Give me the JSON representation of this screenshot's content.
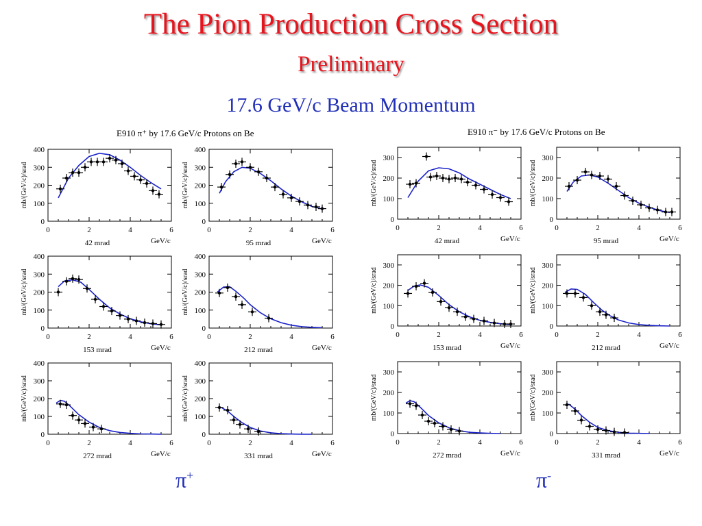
{
  "slide": {
    "title": "The Pion Production Cross Section",
    "subtitle": "Preliminary",
    "beam_label": "17.6 GeV/c Beam Momentum"
  },
  "panels": [
    {
      "title": "E910 π⁺ by 17.6 GeV/c Protons on Be",
      "pion_symbol": "π",
      "pion_charge": "+"
    },
    {
      "title": "E910 π⁻ by 17.6 GeV/c Protons on Be",
      "pion_symbol": "π",
      "pion_charge": "-"
    }
  ],
  "colors": {
    "title": "#e8141d",
    "beam": "#2230b8",
    "curve": "#1a22c8",
    "points": "#000000"
  },
  "chart_data": [
    {
      "type": "scatter",
      "group": "pi+",
      "title": "42 mrad",
      "xlabel": "GeV/c",
      "ylabel": "mb/(GeV/c)/srad",
      "xlim": [
        0,
        6
      ],
      "ylim": [
        0,
        400
      ],
      "xticks": [
        0,
        2,
        4,
        6
      ],
      "yticks": [
        0,
        100,
        200,
        300,
        400
      ],
      "points": [
        [
          0.6,
          180
        ],
        [
          0.9,
          240
        ],
        [
          1.2,
          270
        ],
        [
          1.5,
          270
        ],
        [
          1.8,
          300
        ],
        [
          2.1,
          330
        ],
        [
          2.4,
          330
        ],
        [
          2.7,
          330
        ],
        [
          3.0,
          350
        ],
        [
          3.3,
          340
        ],
        [
          3.6,
          320
        ],
        [
          3.9,
          280
        ],
        [
          4.2,
          250
        ],
        [
          4.5,
          230
        ],
        [
          4.8,
          210
        ],
        [
          5.1,
          170
        ],
        [
          5.4,
          150
        ]
      ],
      "curve": [
        [
          0.5,
          130
        ],
        [
          1,
          240
        ],
        [
          1.5,
          310
        ],
        [
          2,
          360
        ],
        [
          2.5,
          378
        ],
        [
          3,
          370
        ],
        [
          3.5,
          340
        ],
        [
          4,
          300
        ],
        [
          4.5,
          255
        ],
        [
          5,
          215
        ],
        [
          5.5,
          180
        ]
      ]
    },
    {
      "type": "scatter",
      "group": "pi+",
      "title": "95 mrad",
      "xlabel": "GeV/c",
      "ylabel": "mb/(GeV/c)/srad",
      "xlim": [
        0,
        6
      ],
      "ylim": [
        0,
        400
      ],
      "xticks": [
        0,
        2,
        4,
        6
      ],
      "yticks": [
        0,
        100,
        200,
        300,
        400
      ],
      "points": [
        [
          0.6,
          190
        ],
        [
          1.0,
          260
        ],
        [
          1.3,
          320
        ],
        [
          1.6,
          330
        ],
        [
          2.0,
          300
        ],
        [
          2.4,
          275
        ],
        [
          2.8,
          240
        ],
        [
          3.2,
          190
        ],
        [
          3.6,
          150
        ],
        [
          4.0,
          130
        ],
        [
          4.4,
          110
        ],
        [
          4.8,
          90
        ],
        [
          5.2,
          80
        ],
        [
          5.5,
          70
        ]
      ],
      "curve": [
        [
          0.5,
          155
        ],
        [
          0.8,
          220
        ],
        [
          1.2,
          275
        ],
        [
          1.6,
          300
        ],
        [
          2,
          295
        ],
        [
          2.5,
          265
        ],
        [
          3,
          225
        ],
        [
          3.5,
          180
        ],
        [
          4,
          140
        ],
        [
          4.5,
          108
        ],
        [
          5,
          82
        ],
        [
          5.5,
          68
        ]
      ]
    },
    {
      "type": "scatter",
      "group": "pi+",
      "title": "153 mrad",
      "xlabel": "GeV/c",
      "ylabel": "mb/(GeV/c)/srad",
      "xlim": [
        0,
        6
      ],
      "ylim": [
        0,
        400
      ],
      "xticks": [
        0,
        2,
        4,
        6
      ],
      "yticks": [
        0,
        100,
        200,
        300,
        400
      ],
      "points": [
        [
          0.5,
          200
        ],
        [
          0.9,
          260
        ],
        [
          1.2,
          275
        ],
        [
          1.5,
          270
        ],
        [
          1.9,
          220
        ],
        [
          2.3,
          160
        ],
        [
          2.7,
          120
        ],
        [
          3.1,
          95
        ],
        [
          3.5,
          70
        ],
        [
          3.9,
          50
        ],
        [
          4.3,
          40
        ],
        [
          4.7,
          30
        ],
        [
          5.1,
          25
        ],
        [
          5.5,
          20
        ]
      ],
      "curve": [
        [
          0.5,
          230
        ],
        [
          0.8,
          262
        ],
        [
          1.2,
          268
        ],
        [
          1.6,
          255
        ],
        [
          2,
          215
        ],
        [
          2.5,
          160
        ],
        [
          3,
          112
        ],
        [
          3.5,
          78
        ],
        [
          4,
          52
        ],
        [
          4.5,
          35
        ],
        [
          5,
          24
        ],
        [
          5.5,
          18
        ]
      ]
    },
    {
      "type": "scatter",
      "group": "pi+",
      "title": "212 mrad",
      "xlabel": "GeV/c",
      "ylabel": "mb/(GeV/c)/srad",
      "xlim": [
        0,
        6
      ],
      "ylim": [
        0,
        400
      ],
      "xticks": [
        0,
        2,
        4,
        6
      ],
      "yticks": [
        0,
        100,
        200,
        300,
        400
      ],
      "points": [
        [
          0.5,
          195
        ],
        [
          0.9,
          225
        ],
        [
          1.3,
          175
        ],
        [
          1.6,
          130
        ],
        [
          2.1,
          90
        ],
        [
          2.9,
          55
        ]
      ],
      "curve": [
        [
          0.4,
          200
        ],
        [
          0.7,
          228
        ],
        [
          1.0,
          230
        ],
        [
          1.3,
          205
        ],
        [
          1.7,
          165
        ],
        [
          2,
          130
        ],
        [
          2.5,
          85
        ],
        [
          3,
          52
        ],
        [
          3.5,
          30
        ],
        [
          4,
          16
        ],
        [
          4.5,
          8
        ],
        [
          5,
          4
        ],
        [
          5.5,
          2
        ]
      ]
    },
    {
      "type": "scatter",
      "group": "pi+",
      "title": "272 mrad",
      "xlabel": "GeV/c",
      "ylabel": "mb/(GeV/c)/srad",
      "xlim": [
        0,
        6
      ],
      "ylim": [
        0,
        400
      ],
      "xticks": [
        0,
        2,
        4,
        6
      ],
      "yticks": [
        0,
        100,
        200,
        300,
        400
      ],
      "points": [
        [
          0.6,
          170
        ],
        [
          0.9,
          165
        ],
        [
          1.2,
          105
        ],
        [
          1.5,
          80
        ],
        [
          1.8,
          60
        ],
        [
          2.2,
          40
        ],
        [
          2.6,
          30
        ]
      ],
      "curve": [
        [
          0.4,
          175
        ],
        [
          0.6,
          190
        ],
        [
          0.8,
          185
        ],
        [
          1.1,
          155
        ],
        [
          1.5,
          110
        ],
        [
          2,
          68
        ],
        [
          2.5,
          38
        ],
        [
          3,
          20
        ],
        [
          3.5,
          10
        ],
        [
          4,
          5
        ],
        [
          4.5,
          2
        ],
        [
          5,
          1
        ],
        [
          5.5,
          0
        ]
      ]
    },
    {
      "type": "scatter",
      "group": "pi+",
      "title": "331 mrad",
      "xlabel": "GeV/c",
      "ylabel": "mb/(GeV/c)/srad",
      "xlim": [
        0,
        6
      ],
      "ylim": [
        0,
        400
      ],
      "xticks": [
        0,
        2,
        4,
        6
      ],
      "yticks": [
        0,
        100,
        200,
        300,
        400
      ],
      "points": [
        [
          0.5,
          150
        ],
        [
          0.9,
          135
        ],
        [
          1.2,
          80
        ],
        [
          1.5,
          55
        ],
        [
          1.9,
          30
        ],
        [
          2.4,
          15
        ]
      ],
      "curve": [
        [
          0.4,
          150
        ],
        [
          0.6,
          150
        ],
        [
          0.9,
          130
        ],
        [
          1.2,
          100
        ],
        [
          1.6,
          65
        ],
        [
          2,
          38
        ],
        [
          2.5,
          18
        ],
        [
          3,
          8
        ],
        [
          3.5,
          3
        ],
        [
          4,
          1
        ],
        [
          4.5,
          0
        ],
        [
          5,
          0
        ]
      ]
    },
    {
      "type": "scatter",
      "group": "pi-",
      "title": "42 mrad",
      "xlabel": "GeV/c",
      "ylabel": "mb/(GeV/c)/srad",
      "xlim": [
        0,
        6
      ],
      "ylim": [
        0,
        350
      ],
      "xticks": [
        0,
        2,
        4,
        6
      ],
      "yticks": [
        0,
        100,
        200,
        300
      ],
      "points": [
        [
          0.6,
          170
        ],
        [
          0.9,
          175
        ],
        [
          1.4,
          305
        ],
        [
          1.6,
          205
        ],
        [
          1.9,
          210
        ],
        [
          2.2,
          200
        ],
        [
          2.5,
          195
        ],
        [
          2.8,
          200
        ],
        [
          3.1,
          195
        ],
        [
          3.4,
          180
        ],
        [
          3.8,
          165
        ],
        [
          4.2,
          145
        ],
        [
          4.6,
          120
        ],
        [
          5.0,
          105
        ],
        [
          5.4,
          85
        ]
      ],
      "curve": [
        [
          0.5,
          105
        ],
        [
          1,
          185
        ],
        [
          1.5,
          235
        ],
        [
          2,
          250
        ],
        [
          2.5,
          245
        ],
        [
          3,
          225
        ],
        [
          3.5,
          195
        ],
        [
          4,
          170
        ],
        [
          4.5,
          145
        ],
        [
          5,
          120
        ],
        [
          5.5,
          100
        ]
      ]
    },
    {
      "type": "scatter",
      "group": "pi-",
      "title": "95 mrad",
      "xlabel": "GeV/c",
      "ylabel": "mb/(GeV/c)/srad",
      "xlim": [
        0,
        6
      ],
      "ylim": [
        0,
        350
      ],
      "xticks": [
        0,
        2,
        4,
        6
      ],
      "yticks": [
        0,
        100,
        200,
        300
      ],
      "points": [
        [
          0.6,
          160
        ],
        [
          1.0,
          190
        ],
        [
          1.4,
          230
        ],
        [
          1.7,
          215
        ],
        [
          2.1,
          210
        ],
        [
          2.5,
          195
        ],
        [
          2.9,
          160
        ],
        [
          3.3,
          115
        ],
        [
          3.7,
          90
        ],
        [
          4.1,
          70
        ],
        [
          4.5,
          55
        ],
        [
          4.9,
          45
        ],
        [
          5.3,
          35
        ],
        [
          5.6,
          35
        ]
      ],
      "curve": [
        [
          0.5,
          135
        ],
        [
          0.8,
          180
        ],
        [
          1.2,
          210
        ],
        [
          1.6,
          215
        ],
        [
          2,
          205
        ],
        [
          2.5,
          175
        ],
        [
          3,
          140
        ],
        [
          3.5,
          105
        ],
        [
          4,
          78
        ],
        [
          4.5,
          58
        ],
        [
          5,
          42
        ],
        [
          5.5,
          32
        ]
      ]
    },
    {
      "type": "scatter",
      "group": "pi-",
      "title": "153 mrad",
      "xlabel": "GeV/c",
      "ylabel": "mb/(GeV/c)/srad",
      "xlim": [
        0,
        6
      ],
      "ylim": [
        0,
        350
      ],
      "xticks": [
        0,
        2,
        4,
        6
      ],
      "yticks": [
        0,
        100,
        200,
        300
      ],
      "points": [
        [
          0.5,
          160
        ],
        [
          0.9,
          195
        ],
        [
          1.3,
          210
        ],
        [
          1.7,
          165
        ],
        [
          2.1,
          120
        ],
        [
          2.5,
          90
        ],
        [
          2.9,
          70
        ],
        [
          3.3,
          45
        ],
        [
          3.7,
          35
        ],
        [
          4.2,
          25
        ],
        [
          4.7,
          15
        ],
        [
          5.2,
          10
        ],
        [
          5.5,
          10
        ]
      ],
      "curve": [
        [
          0.5,
          175
        ],
        [
          0.8,
          196
        ],
        [
          1.1,
          202
        ],
        [
          1.5,
          190
        ],
        [
          2,
          150
        ],
        [
          2.5,
          105
        ],
        [
          3,
          70
        ],
        [
          3.5,
          45
        ],
        [
          4,
          28
        ],
        [
          4.5,
          18
        ],
        [
          5,
          11
        ],
        [
          5.5,
          7
        ]
      ]
    },
    {
      "type": "scatter",
      "group": "pi-",
      "title": "212 mrad",
      "xlabel": "GeV/c",
      "ylabel": "mb/(GeV/c)/srad",
      "xlim": [
        0,
        6
      ],
      "ylim": [
        0,
        350
      ],
      "xticks": [
        0,
        2,
        4,
        6
      ],
      "yticks": [
        0,
        100,
        200,
        300
      ],
      "points": [
        [
          0.5,
          160
        ],
        [
          0.9,
          160
        ],
        [
          1.3,
          140
        ],
        [
          1.7,
          100
        ],
        [
          2.1,
          70
        ],
        [
          2.4,
          55
        ],
        [
          2.8,
          40
        ]
      ],
      "curve": [
        [
          0.4,
          165
        ],
        [
          0.7,
          182
        ],
        [
          1.0,
          180
        ],
        [
          1.4,
          155
        ],
        [
          1.8,
          115
        ],
        [
          2.2,
          78
        ],
        [
          2.6,
          50
        ],
        [
          3,
          30
        ],
        [
          3.5,
          15
        ],
        [
          4,
          7
        ],
        [
          4.5,
          3
        ],
        [
          5,
          1
        ],
        [
          5.5,
          0
        ]
      ]
    },
    {
      "type": "scatter",
      "group": "pi-",
      "title": "272 mrad",
      "xlabel": "GeV/c",
      "ylabel": "mb/(GeV/c)/srad",
      "xlim": [
        0,
        6
      ],
      "ylim": [
        0,
        350
      ],
      "xticks": [
        0,
        2,
        4,
        6
      ],
      "yticks": [
        0,
        100,
        200,
        300
      ],
      "points": [
        [
          0.6,
          145
        ],
        [
          0.9,
          135
        ],
        [
          1.2,
          90
        ],
        [
          1.5,
          60
        ],
        [
          1.8,
          50
        ],
        [
          2.2,
          35
        ],
        [
          2.6,
          20
        ],
        [
          3.0,
          12
        ]
      ],
      "curve": [
        [
          0.4,
          148
        ],
        [
          0.6,
          160
        ],
        [
          0.8,
          155
        ],
        [
          1.1,
          128
        ],
        [
          1.5,
          88
        ],
        [
          2,
          52
        ],
        [
          2.5,
          28
        ],
        [
          3,
          14
        ],
        [
          3.5,
          6
        ],
        [
          4,
          3
        ],
        [
          4.5,
          1
        ],
        [
          5,
          0
        ]
      ]
    },
    {
      "type": "scatter",
      "group": "pi-",
      "title": "331 mrad",
      "xlabel": "GeV/c",
      "ylabel": "mb/(GeV/c)/srad",
      "xlim": [
        0,
        6
      ],
      "ylim": [
        0,
        350
      ],
      "xticks": [
        0,
        2,
        4,
        6
      ],
      "yticks": [
        0,
        100,
        200,
        300
      ],
      "points": [
        [
          0.5,
          140
        ],
        [
          0.9,
          110
        ],
        [
          1.2,
          65
        ],
        [
          1.6,
          35
        ],
        [
          2.0,
          20
        ],
        [
          2.4,
          15
        ],
        [
          2.8,
          8
        ],
        [
          3.3,
          5
        ]
      ],
      "curve": [
        [
          0.4,
          138
        ],
        [
          0.6,
          142
        ],
        [
          0.9,
          118
        ],
        [
          1.2,
          88
        ],
        [
          1.6,
          55
        ],
        [
          2,
          30
        ],
        [
          2.5,
          14
        ],
        [
          3,
          6
        ],
        [
          3.5,
          2
        ],
        [
          4,
          1
        ],
        [
          4.5,
          0
        ]
      ]
    }
  ]
}
